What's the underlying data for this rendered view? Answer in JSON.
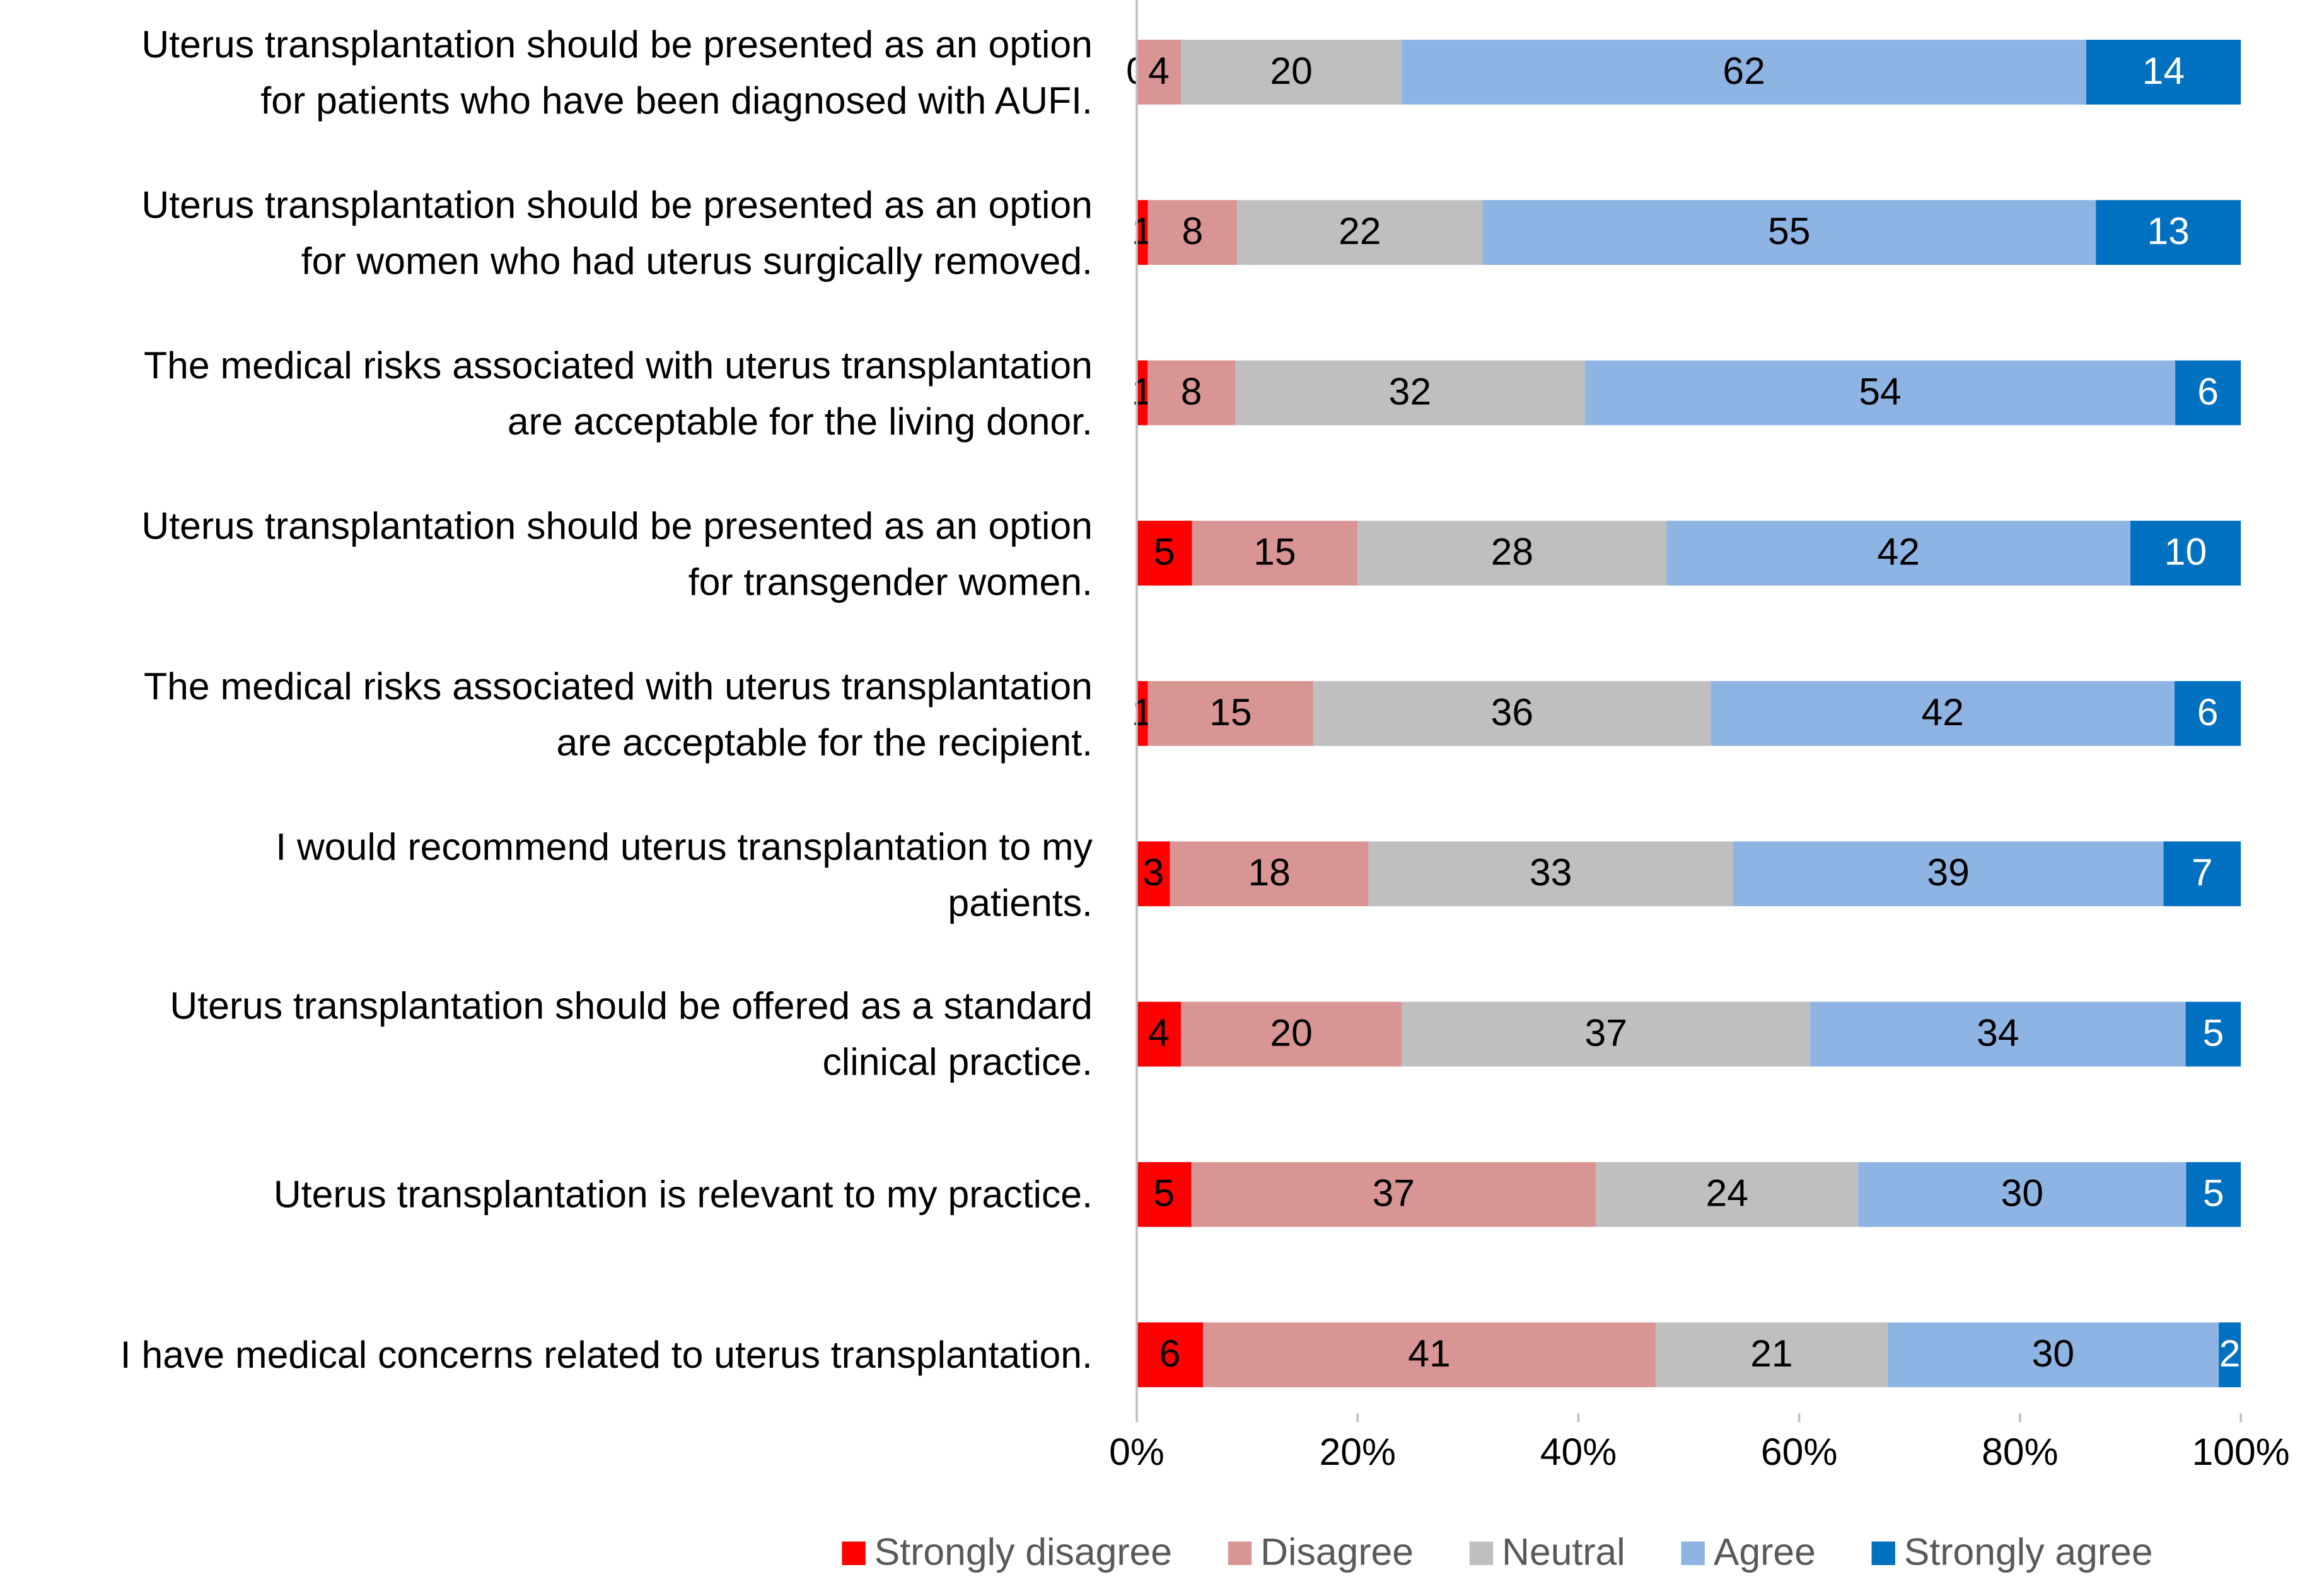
{
  "chart_data": {
    "type": "bar",
    "orientation": "horizontal",
    "stacked": "percent",
    "categories": [
      "Uterus transplantation should be presented as an option\nfor patients who have been diagnosed with AUFI.",
      "Uterus transplantation should be presented as an option\nfor women who had uterus surgically removed.",
      "The medical risks associated with uterus transplantation\nare acceptable for the living donor.",
      "Uterus transplantation should be presented as an option\nfor transgender women.",
      "The medical risks associated with uterus transplantation\nare acceptable for the recipient.",
      "I would recommend uterus transplantation to my\npatients.",
      "Uterus transplantation should be offered as a standard\nclinical practice.",
      "Uterus transplantation is relevant to my practice.",
      "I have medical concerns related to uterus transplantation."
    ],
    "series": [
      {
        "name": "Strongly disagree",
        "color": "#ff0000",
        "values": [
          0,
          1,
          1,
          5,
          1,
          3,
          4,
          5,
          6
        ]
      },
      {
        "name": "Disagree",
        "color": "#d99594",
        "values": [
          4,
          8,
          8,
          15,
          15,
          18,
          20,
          37,
          41
        ]
      },
      {
        "name": "Neutral",
        "color": "#bfbfbf",
        "values": [
          20,
          22,
          32,
          28,
          36,
          33,
          37,
          24,
          21
        ]
      },
      {
        "name": "Agree",
        "color": "#8eb4e3",
        "values": [
          62,
          55,
          54,
          42,
          42,
          39,
          34,
          30,
          30
        ]
      },
      {
        "name": "Strongly agree",
        "color": "#0070c0",
        "values": [
          14,
          13,
          6,
          10,
          6,
          7,
          5,
          5,
          2
        ]
      }
    ],
    "xlim": [
      0,
      100
    ],
    "xticks": [
      {
        "value": 0,
        "label": "0%"
      },
      {
        "value": 20,
        "label": "20%"
      },
      {
        "value": 40,
        "label": "40%"
      },
      {
        "value": 60,
        "label": "60%"
      },
      {
        "value": 80,
        "label": "80%"
      },
      {
        "value": 100,
        "label": "100%"
      }
    ],
    "grid": false,
    "legend": "bottom"
  }
}
